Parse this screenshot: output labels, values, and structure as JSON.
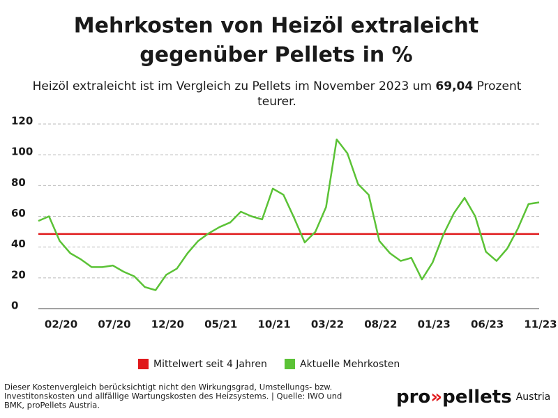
{
  "chart_data": {
    "type": "line",
    "title": [
      "Mehrkosten von Heizöl extraleicht",
      "gegenüber Pellets in %"
    ],
    "subtitle": [
      "Heizöl extraleicht ist im Vergleich zu Pellets im November 2023 um ",
      "69,04",
      " Prozent",
      "teurer."
    ],
    "categories": [
      null,
      null,
      "02/20",
      null,
      null,
      null,
      null,
      "07/20",
      null,
      null,
      null,
      null,
      "12/20",
      null,
      null,
      null,
      null,
      "05/21",
      null,
      null,
      null,
      null,
      "10/21",
      null,
      null,
      null,
      null,
      "03/22",
      null,
      null,
      null,
      null,
      "08/22",
      null,
      null,
      null,
      null,
      "01/23",
      null,
      null,
      null,
      null,
      "06/23",
      null,
      null,
      null,
      null,
      "11/23"
    ],
    "series": [
      {
        "name": "Aktuelle Mehrkosten",
        "color": "#5bc236",
        "values": [
          57,
          60,
          44,
          36,
          32,
          27,
          27,
          28,
          24,
          21,
          14,
          12,
          22,
          26,
          36,
          44,
          49,
          53,
          56,
          63,
          60,
          58,
          78,
          74,
          59,
          43,
          50,
          66,
          110,
          101,
          81,
          74,
          44,
          36,
          31,
          33,
          19,
          30,
          48,
          62,
          72,
          60,
          37,
          31,
          39,
          52,
          68,
          69.04
        ]
      }
    ],
    "reference_lines": [
      {
        "name": "Mittelwert seit 4 Jahren",
        "color": "#e0191b",
        "value": 48.5
      }
    ],
    "ylim": [
      0,
      120
    ],
    "yticks": [
      0,
      20,
      40,
      60,
      80,
      100,
      120
    ],
    "grid": true,
    "footnote": [
      "Dieser Kostenvergleich berücksichtigt nicht den Wirkungsgrad, Umstellungs- bzw.",
      "Investitonskosten und allfällige Wartungskosten des Heizsystems. | Quelle: IWO und",
      "BMK, proPellets Austria."
    ],
    "logo": {
      "pro": "pro",
      "arrow": "»",
      "pellets": "pellets",
      "suffix": "Austria"
    }
  }
}
